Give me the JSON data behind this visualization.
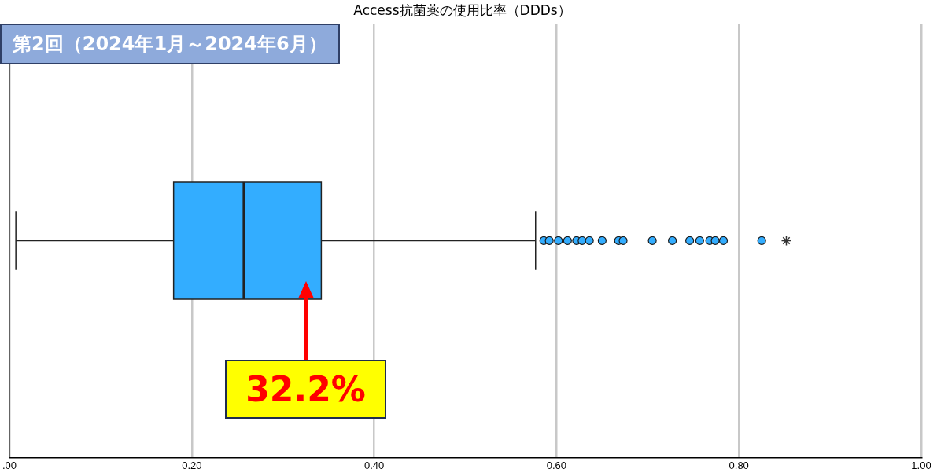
{
  "chart_data": {
    "type": "box",
    "title": "Access抗菌薬の使用比率（DDDs）",
    "orientation": "horizontal",
    "categories": [
      null
    ],
    "series": [
      {
        "type": "box",
        "color": "#33adff",
        "marker": "circle",
        "boxes": [
          {
            "low": 0.007,
            "q1": 0.18,
            "median": 0.257,
            "q3": 0.342,
            "high": 0.577,
            "outliers": [
              0.586,
              0.592,
              0.602,
              0.612,
              0.622,
              0.628,
              0.636,
              0.65,
              0.668,
              0.673,
              0.705,
              0.727,
              0.746,
              0.757,
              0.768,
              0.774,
              0.783,
              0.825
            ]
          }
        ]
      },
      {
        "type": "scatter",
        "color": "#333333",
        "marker": "cross",
        "values": [
          0.852
        ]
      }
    ],
    "xlim": [
      0,
      1.0
    ],
    "xticks": [
      {
        "value": 0,
        "label": ".00"
      },
      {
        "value": 0.2,
        "label": "0.20"
      },
      {
        "value": 0.4,
        "label": "0.40"
      },
      {
        "value": 0.6,
        "label": "0.60"
      },
      {
        "value": 0.8,
        "label": "0.80"
      },
      {
        "value": 1.0,
        "label": "1.00"
      }
    ],
    "grid": "x",
    "tick_labels": "x",
    "legend": false,
    "annotations": [
      "第2回（2024年1月～2024年6月）",
      "32.2%"
    ]
  }
}
